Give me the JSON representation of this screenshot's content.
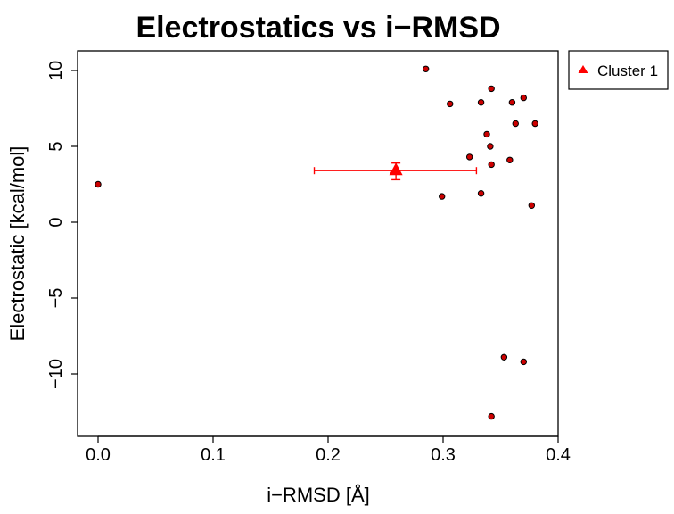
{
  "chart_data": {
    "type": "scatter",
    "title": "Electrostatics vs i−RMSD",
    "xlabel": "i−RMSD [Å]",
    "ylabel": "Electrostatic [kcal/mol]",
    "xlim": [
      0.0,
      0.4
    ],
    "ylim": [
      -14.2,
      11.2
    ],
    "x_ticks": [
      {
        "value": 0.0,
        "label": "0.0"
      },
      {
        "value": 0.1,
        "label": "0.1"
      },
      {
        "value": 0.2,
        "label": "0.2"
      },
      {
        "value": 0.3,
        "label": "0.3"
      },
      {
        "value": 0.4,
        "label": "0.4"
      }
    ],
    "y_ticks": [
      {
        "value": -10,
        "label": "−10"
      },
      {
        "value": -5,
        "label": "−5"
      },
      {
        "value": 0,
        "label": "0"
      },
      {
        "value": 5,
        "label": "5"
      },
      {
        "value": 10,
        "label": "10"
      }
    ],
    "grid": false,
    "legend_position": "outside-top-right",
    "points": [
      {
        "x": 0.0,
        "y": 2.5
      },
      {
        "x": 0.285,
        "y": 10.1
      },
      {
        "x": 0.299,
        "y": 1.7
      },
      {
        "x": 0.306,
        "y": 7.8
      },
      {
        "x": 0.323,
        "y": 4.3
      },
      {
        "x": 0.333,
        "y": 7.9
      },
      {
        "x": 0.333,
        "y": 1.9
      },
      {
        "x": 0.338,
        "y": 5.8
      },
      {
        "x": 0.341,
        "y": 5.0
      },
      {
        "x": 0.342,
        "y": 8.8
      },
      {
        "x": 0.342,
        "y": 3.8
      },
      {
        "x": 0.342,
        "y": -12.8
      },
      {
        "x": 0.353,
        "y": -8.9
      },
      {
        "x": 0.358,
        "y": 4.1
      },
      {
        "x": 0.36,
        "y": 7.9
      },
      {
        "x": 0.363,
        "y": 6.5
      },
      {
        "x": 0.37,
        "y": 8.2
      },
      {
        "x": 0.37,
        "y": -9.2
      },
      {
        "x": 0.377,
        "y": 1.1
      },
      {
        "x": 0.38,
        "y": 6.5
      }
    ],
    "point_color": "#cc0000",
    "series": [
      {
        "name": "Cluster 1",
        "x": 0.259,
        "y": 3.4,
        "x_error": [
          0.188,
          0.329
        ],
        "y_error": [
          2.8,
          3.9
        ],
        "color": "#ff0000",
        "marker": "triangle"
      }
    ]
  }
}
